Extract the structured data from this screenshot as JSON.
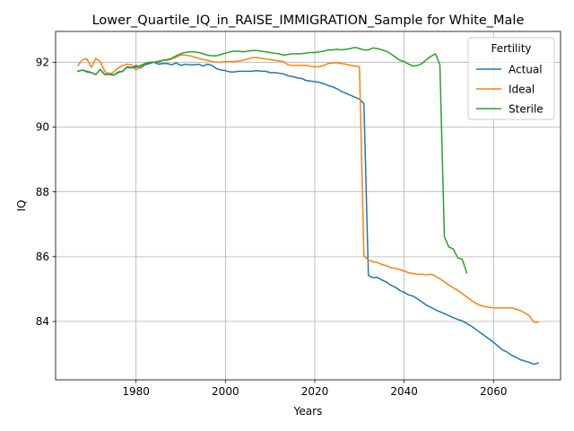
{
  "chart_data": {
    "type": "line",
    "title": "Lower_Quartile_IQ_in_RAISE_IMMIGRATION_Sample for White_Male",
    "xlabel": "Years",
    "ylabel": "IQ",
    "xlim": [
      1962,
      2075
    ],
    "ylim": [
      82.2,
      92.95
    ],
    "xticks": [
      1980,
      2000,
      2020,
      2040,
      2060
    ],
    "yticks": [
      84,
      86,
      88,
      90,
      92
    ],
    "grid": true,
    "legend": {
      "title": "Fertility",
      "placement": "top-right"
    },
    "series": [
      {
        "name": "Actual",
        "color": "#1f77b4",
        "points": [
          [
            1967,
            91.72
          ],
          [
            1968,
            91.76
          ],
          [
            1969,
            91.72
          ],
          [
            1970,
            91.68
          ],
          [
            1971,
            91.62
          ],
          [
            1972,
            91.78
          ],
          [
            1973,
            91.62
          ],
          [
            1974,
            91.66
          ],
          [
            1975,
            91.6
          ],
          [
            1976,
            91.68
          ],
          [
            1977,
            91.72
          ],
          [
            1978,
            91.84
          ],
          [
            1979,
            91.82
          ],
          [
            1980,
            91.9
          ],
          [
            1981,
            91.82
          ],
          [
            1982,
            91.92
          ],
          [
            1983,
            91.96
          ],
          [
            1984,
            92.0
          ],
          [
            1985,
            91.94
          ],
          [
            1986,
            91.96
          ],
          [
            1987,
            91.96
          ],
          [
            1988,
            91.92
          ],
          [
            1989,
            91.98
          ],
          [
            1990,
            91.9
          ],
          [
            1991,
            91.94
          ],
          [
            1992,
            91.92
          ],
          [
            1993,
            91.92
          ],
          [
            1994,
            91.94
          ],
          [
            1995,
            91.88
          ],
          [
            1996,
            91.94
          ],
          [
            1997,
            91.9
          ],
          [
            1998,
            91.8
          ],
          [
            1999,
            91.76
          ],
          [
            2000,
            91.74
          ],
          [
            2001,
            91.7
          ],
          [
            2002,
            91.7
          ],
          [
            2003,
            91.72
          ],
          [
            2004,
            91.72
          ],
          [
            2005,
            91.72
          ],
          [
            2006,
            91.72
          ],
          [
            2007,
            91.74
          ],
          [
            2008,
            91.72
          ],
          [
            2009,
            91.72
          ],
          [
            2010,
            91.68
          ],
          [
            2011,
            91.68
          ],
          [
            2012,
            91.66
          ],
          [
            2013,
            91.64
          ],
          [
            2014,
            91.58
          ],
          [
            2015,
            91.56
          ],
          [
            2016,
            91.52
          ],
          [
            2017,
            91.5
          ],
          [
            2018,
            91.44
          ],
          [
            2019,
            91.42
          ],
          [
            2020,
            91.4
          ],
          [
            2021,
            91.38
          ],
          [
            2022,
            91.34
          ],
          [
            2023,
            91.28
          ],
          [
            2024,
            91.24
          ],
          [
            2025,
            91.18
          ],
          [
            2026,
            91.1
          ],
          [
            2027,
            91.04
          ],
          [
            2028,
            90.98
          ],
          [
            2029,
            90.92
          ],
          [
            2030,
            90.86
          ],
          [
            2031,
            90.72
          ],
          [
            2032,
            85.42
          ],
          [
            2033,
            85.35
          ],
          [
            2034,
            85.36
          ],
          [
            2035,
            85.28
          ],
          [
            2036,
            85.22
          ],
          [
            2037,
            85.12
          ],
          [
            2038,
            85.06
          ],
          [
            2039,
            84.96
          ],
          [
            2040,
            84.9
          ],
          [
            2041,
            84.82
          ],
          [
            2042,
            84.78
          ],
          [
            2043,
            84.7
          ],
          [
            2044,
            84.6
          ],
          [
            2045,
            84.5
          ],
          [
            2046,
            84.44
          ],
          [
            2047,
            84.36
          ],
          [
            2048,
            84.3
          ],
          [
            2049,
            84.24
          ],
          [
            2050,
            84.18
          ],
          [
            2051,
            84.12
          ],
          [
            2052,
            84.06
          ],
          [
            2053,
            84.02
          ],
          [
            2054,
            83.94
          ],
          [
            2055,
            83.86
          ],
          [
            2056,
            83.76
          ],
          [
            2057,
            83.66
          ],
          [
            2058,
            83.56
          ],
          [
            2059,
            83.46
          ],
          [
            2060,
            83.36
          ],
          [
            2061,
            83.24
          ],
          [
            2062,
            83.12
          ],
          [
            2063,
            83.06
          ],
          [
            2064,
            82.96
          ],
          [
            2065,
            82.9
          ],
          [
            2066,
            82.82
          ],
          [
            2067,
            82.78
          ],
          [
            2068,
            82.74
          ],
          [
            2069,
            82.68
          ],
          [
            2070,
            82.72
          ]
        ]
      },
      {
        "name": "Ideal",
        "color": "#ff7f0e",
        "points": [
          [
            1967,
            91.9
          ],
          [
            1968,
            92.08
          ],
          [
            1969,
            92.1
          ],
          [
            1970,
            91.84
          ],
          [
            1971,
            92.12
          ],
          [
            1972,
            92.02
          ],
          [
            1973,
            91.72
          ],
          [
            1974,
            91.62
          ],
          [
            1975,
            91.7
          ],
          [
            1976,
            91.82
          ],
          [
            1977,
            91.9
          ],
          [
            1978,
            91.94
          ],
          [
            1979,
            91.92
          ],
          [
            1980,
            91.76
          ],
          [
            1981,
            91.86
          ],
          [
            1982,
            91.96
          ],
          [
            1983,
            92.0
          ],
          [
            1984,
            92.0
          ],
          [
            1985,
            92.04
          ],
          [
            1986,
            92.06
          ],
          [
            1987,
            92.06
          ],
          [
            1988,
            92.1
          ],
          [
            1989,
            92.16
          ],
          [
            1990,
            92.22
          ],
          [
            1991,
            92.22
          ],
          [
            1992,
            92.2
          ],
          [
            1993,
            92.16
          ],
          [
            1994,
            92.12
          ],
          [
            1995,
            92.08
          ],
          [
            1996,
            92.06
          ],
          [
            1997,
            92.02
          ],
          [
            1998,
            92.0
          ],
          [
            1999,
            92.0
          ],
          [
            2000,
            92.02
          ],
          [
            2001,
            92.02
          ],
          [
            2002,
            92.02
          ],
          [
            2003,
            92.04
          ],
          [
            2004,
            92.06
          ],
          [
            2005,
            92.1
          ],
          [
            2006,
            92.14
          ],
          [
            2007,
            92.14
          ],
          [
            2008,
            92.12
          ],
          [
            2009,
            92.1
          ],
          [
            2010,
            92.08
          ],
          [
            2011,
            92.06
          ],
          [
            2012,
            92.04
          ],
          [
            2013,
            92.02
          ],
          [
            2014,
            91.92
          ],
          [
            2015,
            91.9
          ],
          [
            2016,
            91.9
          ],
          [
            2017,
            91.9
          ],
          [
            2018,
            91.9
          ],
          [
            2019,
            91.88
          ],
          [
            2020,
            91.86
          ],
          [
            2021,
            91.86
          ],
          [
            2022,
            91.9
          ],
          [
            2023,
            91.96
          ],
          [
            2024,
            91.98
          ],
          [
            2025,
            91.98
          ],
          [
            2026,
            91.96
          ],
          [
            2027,
            91.94
          ],
          [
            2028,
            91.9
          ],
          [
            2029,
            91.88
          ],
          [
            2030,
            91.86
          ],
          [
            2031,
            86.02
          ],
          [
            2032,
            85.9
          ],
          [
            2033,
            85.84
          ],
          [
            2034,
            85.82
          ],
          [
            2035,
            85.76
          ],
          [
            2036,
            85.72
          ],
          [
            2037,
            85.66
          ],
          [
            2038,
            85.64
          ],
          [
            2039,
            85.6
          ],
          [
            2040,
            85.56
          ],
          [
            2041,
            85.5
          ],
          [
            2042,
            85.48
          ],
          [
            2043,
            85.46
          ],
          [
            2044,
            85.46
          ],
          [
            2045,
            85.44
          ],
          [
            2046,
            85.46
          ],
          [
            2047,
            85.4
          ],
          [
            2048,
            85.32
          ],
          [
            2049,
            85.22
          ],
          [
            2050,
            85.12
          ],
          [
            2051,
            85.04
          ],
          [
            2052,
            84.96
          ],
          [
            2053,
            84.86
          ],
          [
            2054,
            84.76
          ],
          [
            2055,
            84.66
          ],
          [
            2056,
            84.56
          ],
          [
            2057,
            84.5
          ],
          [
            2058,
            84.46
          ],
          [
            2059,
            84.44
          ],
          [
            2060,
            84.42
          ],
          [
            2061,
            84.42
          ],
          [
            2062,
            84.42
          ],
          [
            2063,
            84.42
          ],
          [
            2064,
            84.42
          ],
          [
            2065,
            84.38
          ],
          [
            2066,
            84.34
          ],
          [
            2067,
            84.26
          ],
          [
            2068,
            84.18
          ],
          [
            2069,
            83.98
          ],
          [
            2070,
            83.98
          ]
        ]
      },
      {
        "name": "Sterile",
        "color": "#2ca02c",
        "points": [
          [
            1967,
            91.72
          ],
          [
            1968,
            91.76
          ],
          [
            1969,
            91.7
          ],
          [
            1970,
            91.68
          ],
          [
            1971,
            91.62
          ],
          [
            1972,
            91.78
          ],
          [
            1973,
            91.62
          ],
          [
            1974,
            91.62
          ],
          [
            1975,
            91.6
          ],
          [
            1976,
            91.7
          ],
          [
            1977,
            91.72
          ],
          [
            1978,
            91.86
          ],
          [
            1979,
            91.84
          ],
          [
            1980,
            91.84
          ],
          [
            1981,
            91.9
          ],
          [
            1982,
            91.96
          ],
          [
            1983,
            92.0
          ],
          [
            1984,
            92.0
          ],
          [
            1985,
            92.0
          ],
          [
            1986,
            92.06
          ],
          [
            1987,
            92.08
          ],
          [
            1988,
            92.12
          ],
          [
            1989,
            92.2
          ],
          [
            1990,
            92.26
          ],
          [
            1991,
            92.3
          ],
          [
            1992,
            92.32
          ],
          [
            1993,
            92.32
          ],
          [
            1994,
            92.3
          ],
          [
            1995,
            92.26
          ],
          [
            1996,
            92.22
          ],
          [
            1997,
            92.2
          ],
          [
            1998,
            92.2
          ],
          [
            1999,
            92.24
          ],
          [
            2000,
            92.28
          ],
          [
            2001,
            92.32
          ],
          [
            2002,
            92.34
          ],
          [
            2003,
            92.34
          ],
          [
            2004,
            92.32
          ],
          [
            2005,
            92.34
          ],
          [
            2006,
            92.36
          ],
          [
            2007,
            92.36
          ],
          [
            2008,
            92.34
          ],
          [
            2009,
            92.32
          ],
          [
            2010,
            92.3
          ],
          [
            2011,
            92.28
          ],
          [
            2012,
            92.26
          ],
          [
            2013,
            92.22
          ],
          [
            2014,
            92.24
          ],
          [
            2015,
            92.26
          ],
          [
            2016,
            92.26
          ],
          [
            2017,
            92.26
          ],
          [
            2018,
            92.28
          ],
          [
            2019,
            92.3
          ],
          [
            2020,
            92.3
          ],
          [
            2021,
            92.32
          ],
          [
            2022,
            92.34
          ],
          [
            2023,
            92.38
          ],
          [
            2024,
            92.38
          ],
          [
            2025,
            92.4
          ],
          [
            2026,
            92.38
          ],
          [
            2027,
            92.4
          ],
          [
            2028,
            92.42
          ],
          [
            2029,
            92.46
          ],
          [
            2030,
            92.42
          ],
          [
            2031,
            92.38
          ],
          [
            2032,
            92.38
          ],
          [
            2033,
            92.44
          ],
          [
            2034,
            92.42
          ],
          [
            2035,
            92.38
          ],
          [
            2036,
            92.34
          ],
          [
            2037,
            92.26
          ],
          [
            2038,
            92.16
          ],
          [
            2039,
            92.06
          ],
          [
            2040,
            92.02
          ],
          [
            2041,
            91.94
          ],
          [
            2042,
            91.88
          ],
          [
            2043,
            91.9
          ],
          [
            2044,
            91.96
          ],
          [
            2045,
            92.08
          ],
          [
            2046,
            92.18
          ],
          [
            2047,
            92.26
          ],
          [
            2048,
            91.92
          ],
          [
            2049,
            86.62
          ],
          [
            2050,
            86.3
          ],
          [
            2051,
            86.24
          ],
          [
            2052,
            85.96
          ],
          [
            2053,
            85.92
          ],
          [
            2054,
            85.5
          ]
        ]
      }
    ]
  }
}
